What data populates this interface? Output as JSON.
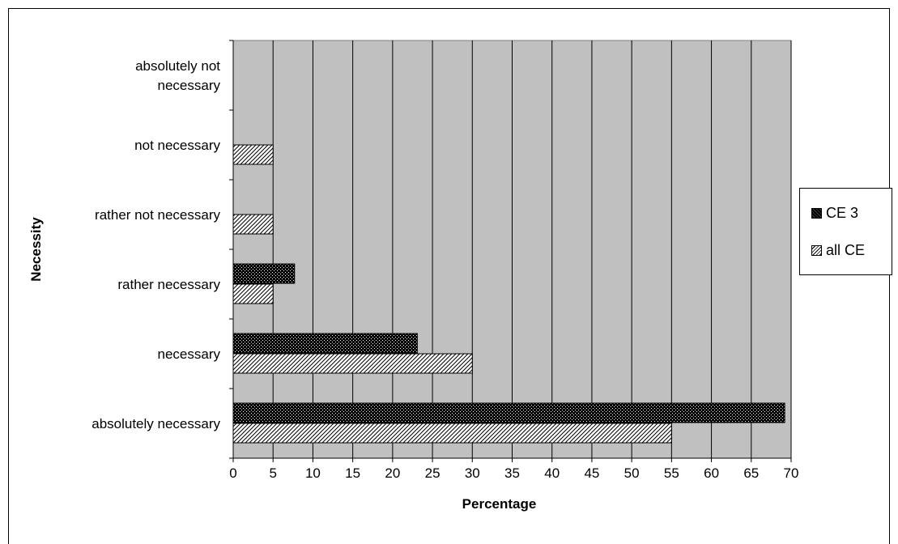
{
  "chart_data": {
    "type": "bar",
    "orientation": "horizontal",
    "categories": [
      "absolutely not|necessary",
      "not necessary",
      "rather not necessary",
      "rather necessary",
      "necessary",
      "absolutely necessary"
    ],
    "series": [
      {
        "name": "CE 3",
        "values": [
          0,
          0,
          0,
          7.7,
          23.1,
          69.2
        ],
        "color": "#000000",
        "pattern": "dotted-dark"
      },
      {
        "name": "all CE",
        "values": [
          0,
          5,
          5,
          5,
          30,
          55
        ],
        "color": "#ffffff",
        "pattern": "diagonal-hatch"
      }
    ],
    "xlabel": "Percentage",
    "ylabel": "Necessity",
    "xlim": [
      0,
      70
    ],
    "xticks": [
      0,
      5,
      10,
      15,
      20,
      25,
      30,
      35,
      40,
      45,
      50,
      55,
      60,
      65,
      70
    ],
    "grid": "vertical",
    "plot_background": "#c0c0c0",
    "legend_position": "right"
  }
}
